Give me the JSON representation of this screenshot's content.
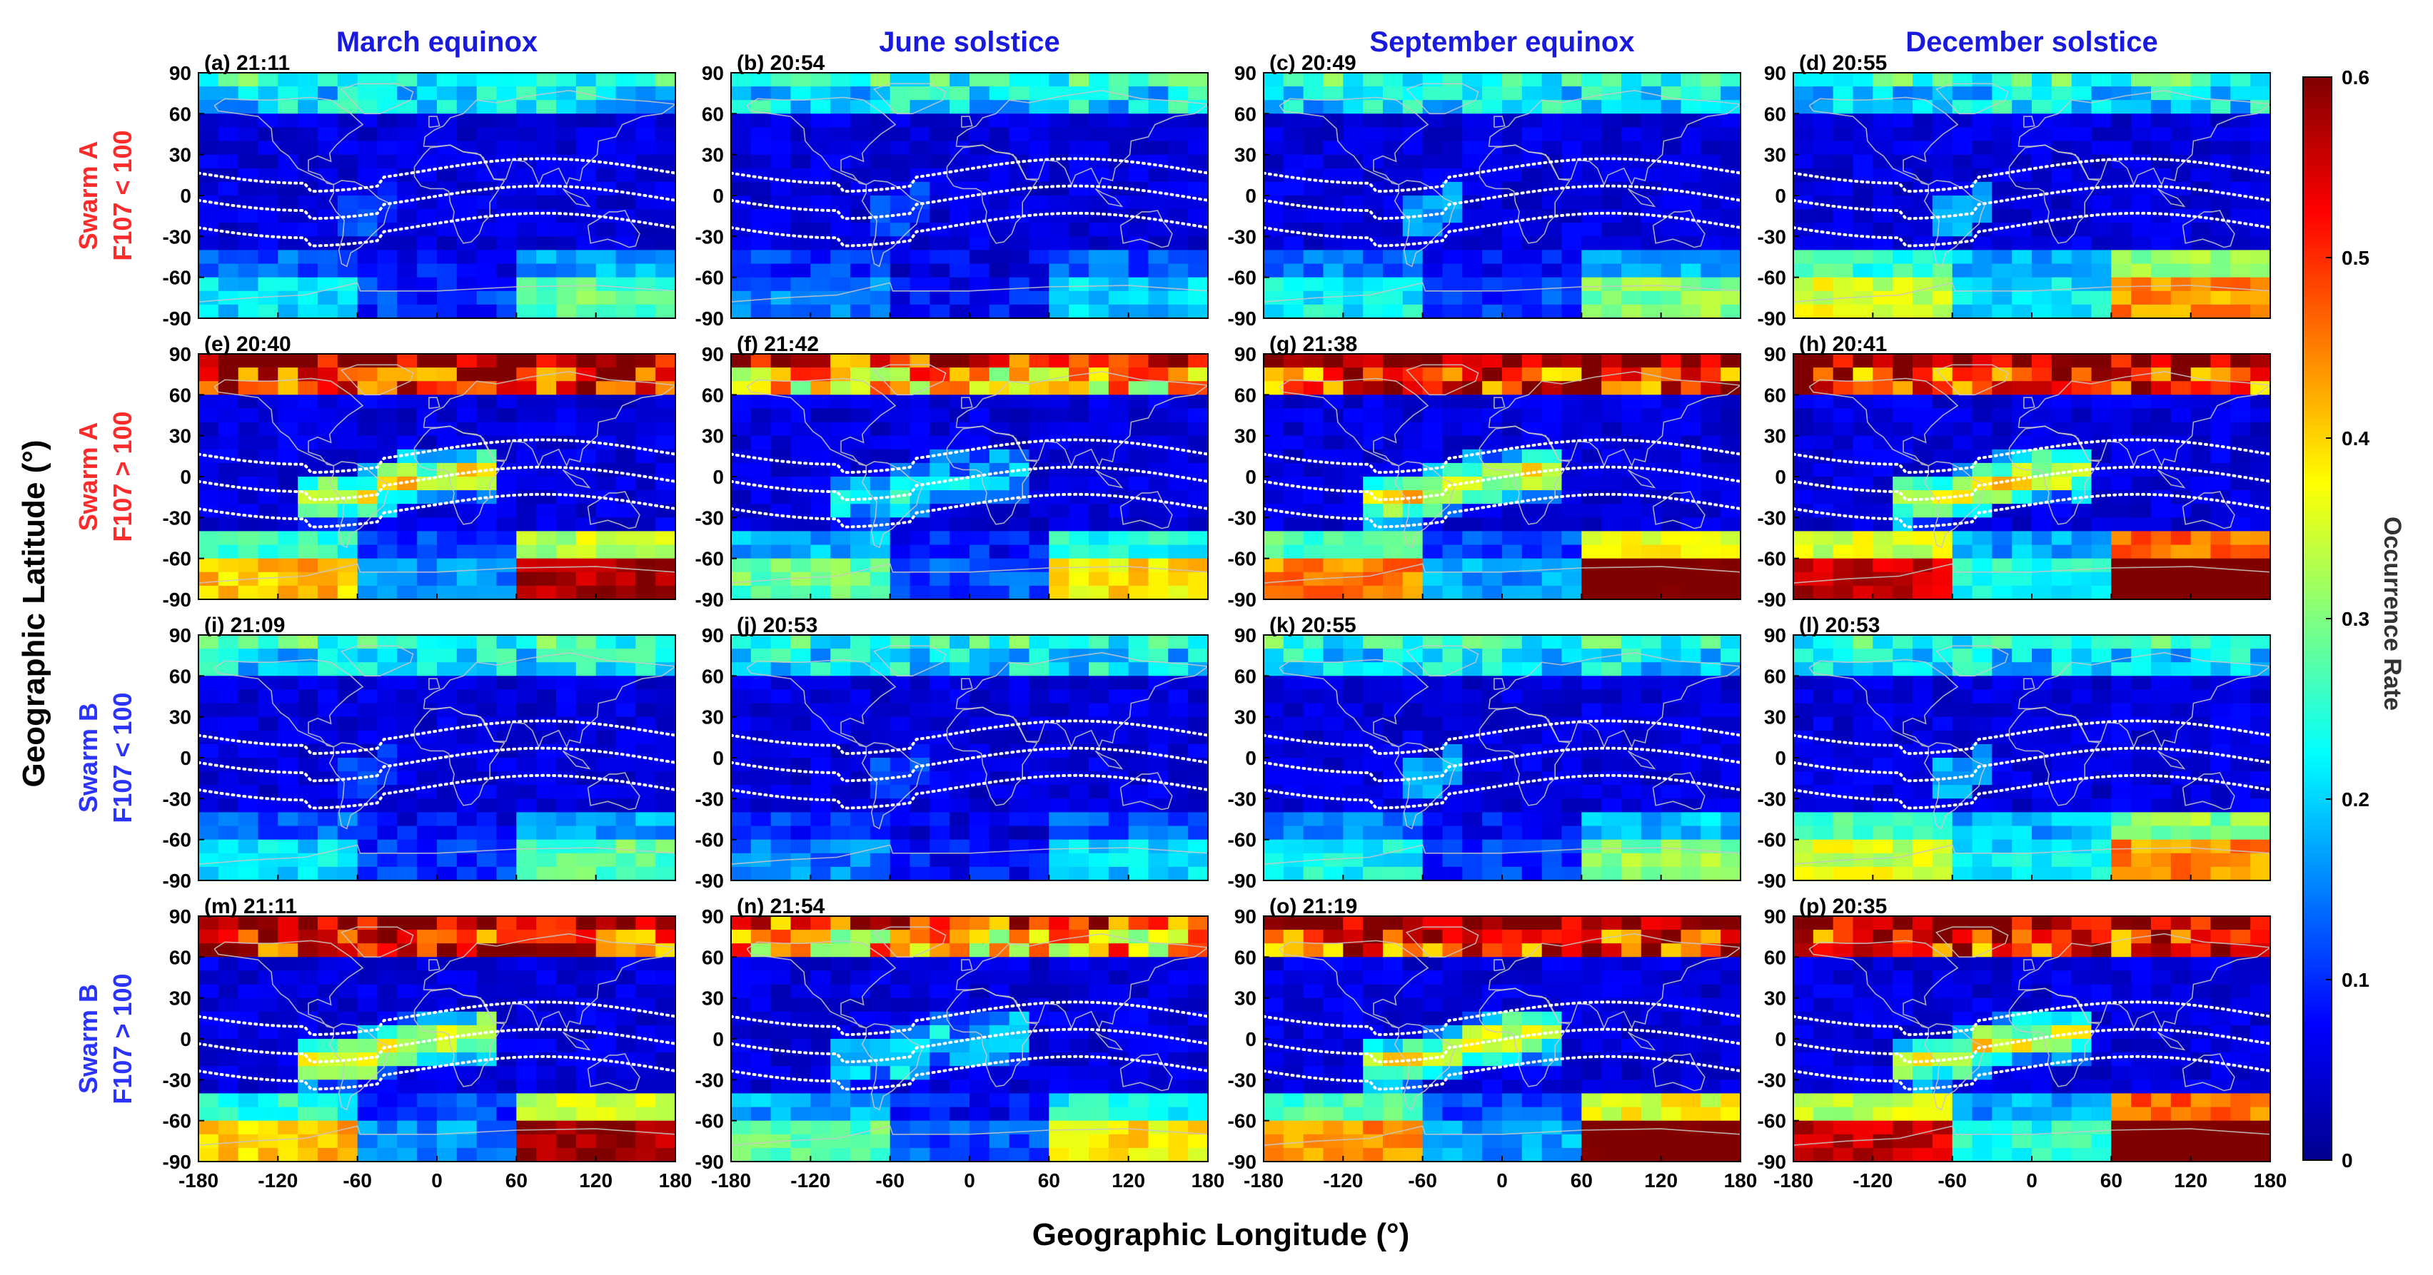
{
  "chart_data": {
    "type": "heatmap",
    "layout": "4x4 grid of geographic maps",
    "column_titles": [
      "March equinox",
      "June solstice",
      "September equinox",
      "December solstice"
    ],
    "row_labels": [
      {
        "line1": "Swarm A",
        "line2": "F107 < 100",
        "color": "#ff2a2a"
      },
      {
        "line1": "Swarm A",
        "line2": "F107 > 100",
        "color": "#ff2a2a"
      },
      {
        "line1": "Swarm B",
        "line2": "F107 < 100",
        "color": "#2a33ff"
      },
      {
        "line1": "Swarm B",
        "line2": "F107 > 100",
        "color": "#2a33ff"
      }
    ],
    "panels": [
      {
        "label": "(a) 21:11",
        "activity": "low",
        "season": "mar"
      },
      {
        "label": "(b) 20:54",
        "activity": "low",
        "season": "jun"
      },
      {
        "label": "(c) 20:49",
        "activity": "low",
        "season": "sep"
      },
      {
        "label": "(d) 20:55",
        "activity": "low",
        "season": "dec"
      },
      {
        "label": "(e) 20:40",
        "activity": "high",
        "season": "mar"
      },
      {
        "label": "(f) 21:42",
        "activity": "high",
        "season": "jun"
      },
      {
        "label": "(g) 21:38",
        "activity": "high",
        "season": "sep"
      },
      {
        "label": "(h) 20:41",
        "activity": "high",
        "season": "dec"
      },
      {
        "label": "(i) 21:09",
        "activity": "low",
        "season": "mar"
      },
      {
        "label": "(j) 20:53",
        "activity": "low",
        "season": "jun"
      },
      {
        "label": "(k) 20:55",
        "activity": "low",
        "season": "sep"
      },
      {
        "label": "(l) 20:53",
        "activity": "low",
        "season": "dec"
      },
      {
        "label": "(m) 21:11",
        "activity": "high",
        "season": "mar"
      },
      {
        "label": "(n) 21:54",
        "activity": "high",
        "season": "jun"
      },
      {
        "label": "(o) 21:19",
        "activity": "high",
        "season": "sep"
      },
      {
        "label": "(p) 20:35",
        "activity": "high",
        "season": "dec"
      }
    ],
    "x_ticks": [
      "-180",
      "-120",
      "-60",
      "0",
      "60",
      "120",
      "180"
    ],
    "y_ticks": [
      "90",
      "60",
      "30",
      "0",
      "-30",
      "-60",
      "-90"
    ],
    "xlim": [
      -180,
      180
    ],
    "ylim": [
      -90,
      90
    ],
    "xlabel": "Geographic Longitude (°)",
    "ylabel": "Geographic Latitude (°)",
    "colorbar": {
      "label": "Occurrence Rate",
      "min": 0,
      "max": 0.6,
      "ticks": [
        "0",
        "0.1",
        "0.2",
        "0.3",
        "0.4",
        "0.5",
        "0.6"
      ],
      "colormap": "jet"
    },
    "overlays": [
      "coastlines",
      "magnetic equator and ±20° magnetic latitude dotted lines"
    ]
  },
  "colors": {
    "col_title": "#1a1adc",
    "dotted_lines": "#ffffff",
    "coastlines": "#c8c8c8"
  }
}
